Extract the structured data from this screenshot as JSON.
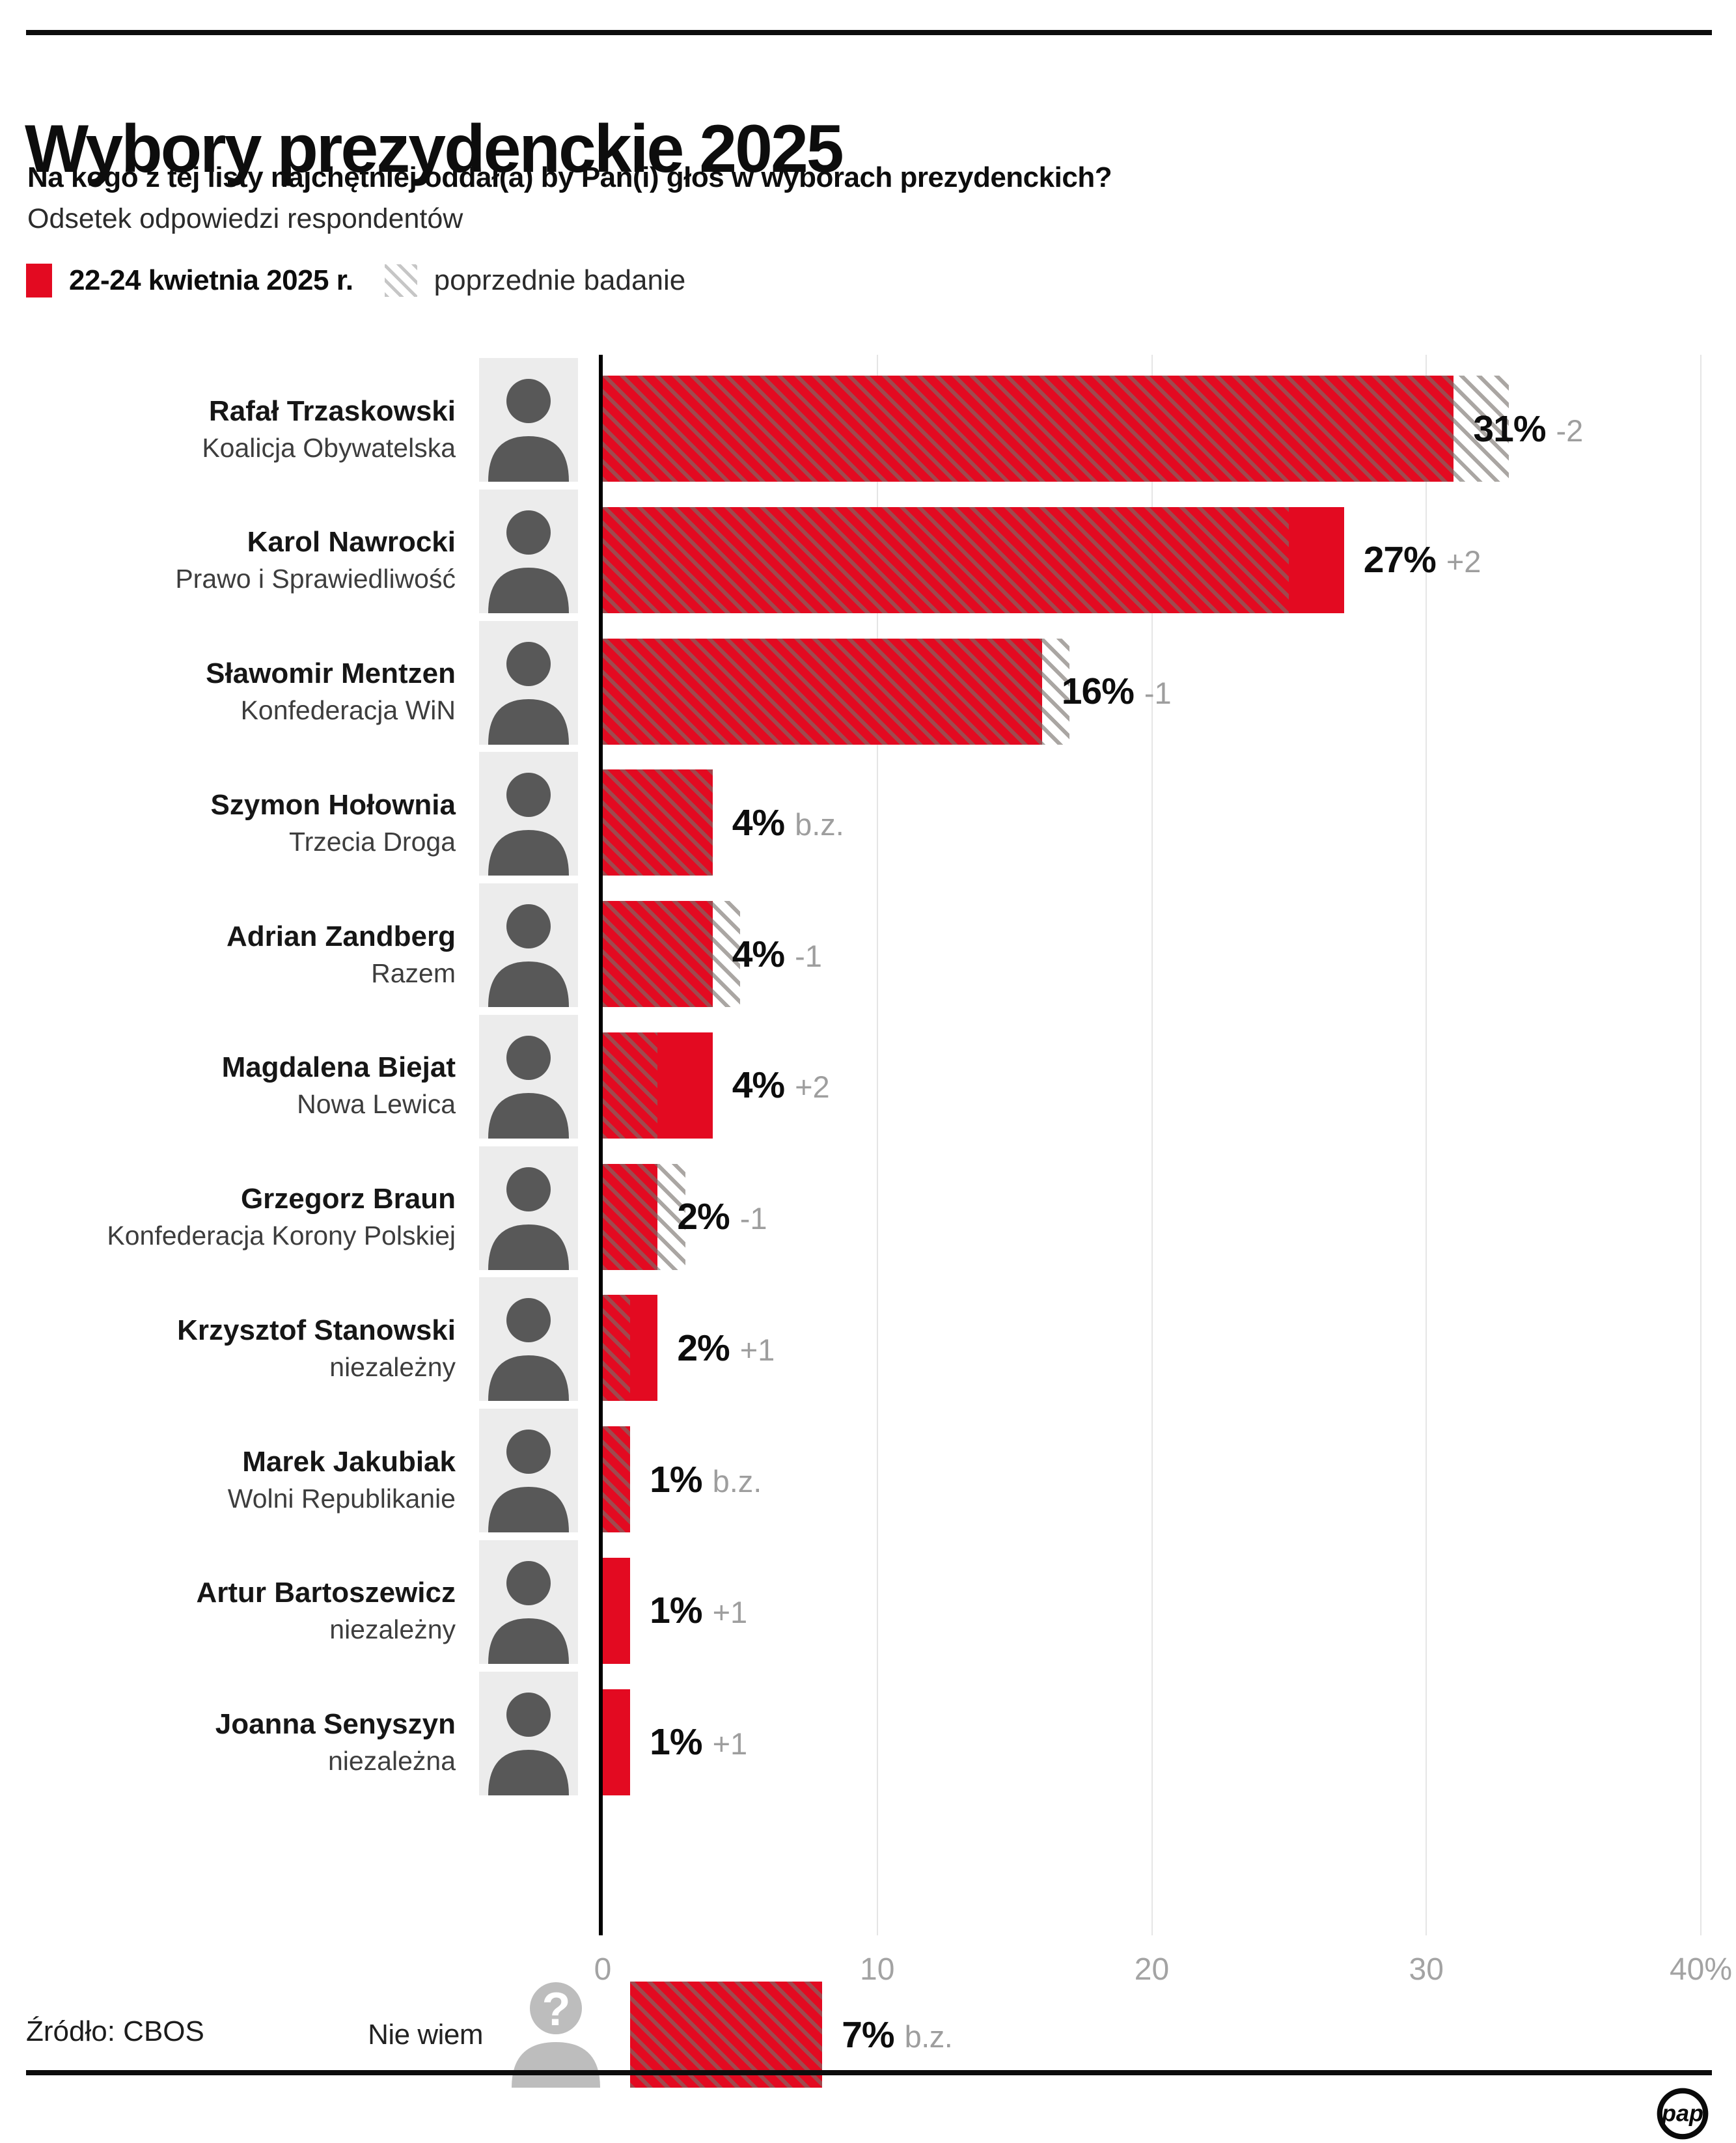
{
  "header": {
    "title": "Wybory prezydenckie 2025",
    "question": "Na kogo z tej listy najchętniej oddał(a) by Pan(i) głos w wyborach prezydenckich?",
    "subtitle": "Odsetek odpowiedzi respondentów"
  },
  "legend": {
    "current_label": "22-24 kwietnia 2025 r.",
    "previous_label": "poprzednie badanie"
  },
  "colors": {
    "bar_red": "#e30a21",
    "hatch_stripe_gray": "#b0aba6",
    "delta_gray": "#9e9e9e",
    "gridline_gray": "#e5e5e5"
  },
  "chart_data": {
    "type": "bar",
    "orientation": "horizontal",
    "unit": "%",
    "title": "Wybory prezydenckie 2025",
    "xlabel": "",
    "ylabel": "",
    "xlim": [
      0,
      40
    ],
    "grid": true,
    "x_axis": {
      "ticks": [
        0,
        10,
        20,
        30,
        40
      ],
      "tick_labels": [
        "0",
        "10",
        "20",
        "30",
        "40%"
      ]
    },
    "series": [
      {
        "name": "22-24 kwietnia 2025 r.",
        "style": "solid-red"
      },
      {
        "name": "poprzednie badanie",
        "style": "gray-diagonal-hatch"
      }
    ],
    "rows": [
      {
        "name": "Rafał Trzaskowski",
        "party": "Koalicja Obywatelska",
        "value": 31,
        "previous": 33,
        "value_label": "31%",
        "delta_label": "-2",
        "avatar": "person"
      },
      {
        "name": "Karol Nawrocki",
        "party": "Prawo i Sprawiedliwość",
        "value": 27,
        "previous": 25,
        "value_label": "27%",
        "delta_label": "+2",
        "avatar": "person"
      },
      {
        "name": "Sławomir Mentzen",
        "party": "Konfederacja WiN",
        "value": 16,
        "previous": 17,
        "value_label": "16%",
        "delta_label": "-1",
        "avatar": "person"
      },
      {
        "name": "Szymon Hołownia",
        "party": "Trzecia Droga",
        "value": 4,
        "previous": 4,
        "value_label": "4%",
        "delta_label": "b.z.",
        "avatar": "person"
      },
      {
        "name": "Adrian Zandberg",
        "party": "Razem",
        "value": 4,
        "previous": 5,
        "value_label": "4%",
        "delta_label": "-1",
        "avatar": "person"
      },
      {
        "name": "Magdalena Biejat",
        "party": "Nowa Lewica",
        "value": 4,
        "previous": 2,
        "value_label": "4%",
        "delta_label": "+2",
        "avatar": "person"
      },
      {
        "name": "Grzegorz Braun",
        "party": "Konfederacja Korony Polskiej",
        "value": 2,
        "previous": 3,
        "value_label": "2%",
        "delta_label": "-1",
        "avatar": "person"
      },
      {
        "name": "Krzysztof Stanowski",
        "party": "niezależny",
        "value": 2,
        "previous": 1,
        "value_label": "2%",
        "delta_label": "+1",
        "avatar": "person"
      },
      {
        "name": "Marek Jakubiak",
        "party": "Wolni Republikanie",
        "value": 1,
        "previous": 1,
        "value_label": "1%",
        "delta_label": "b.z.",
        "avatar": "person"
      },
      {
        "name": "Artur Bartoszewicz",
        "party": "niezależny",
        "value": 1,
        "previous": 0,
        "value_label": "1%",
        "delta_label": "+1",
        "avatar": "person"
      },
      {
        "name": "Joanna Senyszyn",
        "party": "niezależna",
        "value": 1,
        "previous": 0,
        "value_label": "1%",
        "delta_label": "+1",
        "avatar": "person"
      },
      {
        "name": "Nie wiem",
        "party": "",
        "value": 7,
        "previous": 7,
        "value_label": "7%",
        "delta_label": "b.z.",
        "avatar": "question",
        "emphasis": false
      }
    ]
  },
  "footer": {
    "source": "Źródło: CBOS",
    "logo": "pap"
  }
}
